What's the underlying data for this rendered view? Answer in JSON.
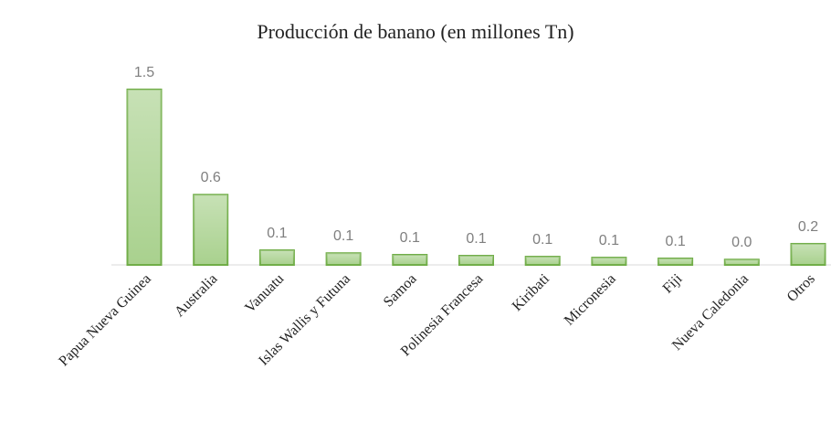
{
  "chart_data": {
    "type": "bar",
    "title": "Producción de banano (en millones Tn)",
    "categories": [
      "Papua Nueva Guinea",
      "Australia",
      "Vanuatu",
      "Islas Wallis y Futuna",
      "Samoa",
      "Polinesia Francesa",
      "Kiribati",
      "Micronesia",
      "Fiji",
      "Nueva Caledonia",
      "Otros"
    ],
    "values": [
      1.5,
      0.6,
      0.125,
      0.1,
      0.086,
      0.078,
      0.07,
      0.062,
      0.055,
      0.045,
      0.18
    ],
    "value_labels": [
      "1.5",
      "0.6",
      "0.1",
      "0.1",
      "0.1",
      "0.1",
      "0.1",
      "0.1",
      "0.1",
      "0.0",
      "0.2"
    ],
    "color": "#a9d18e",
    "edge_color": "#70ad47",
    "ylim": [
      0,
      1.5
    ]
  }
}
